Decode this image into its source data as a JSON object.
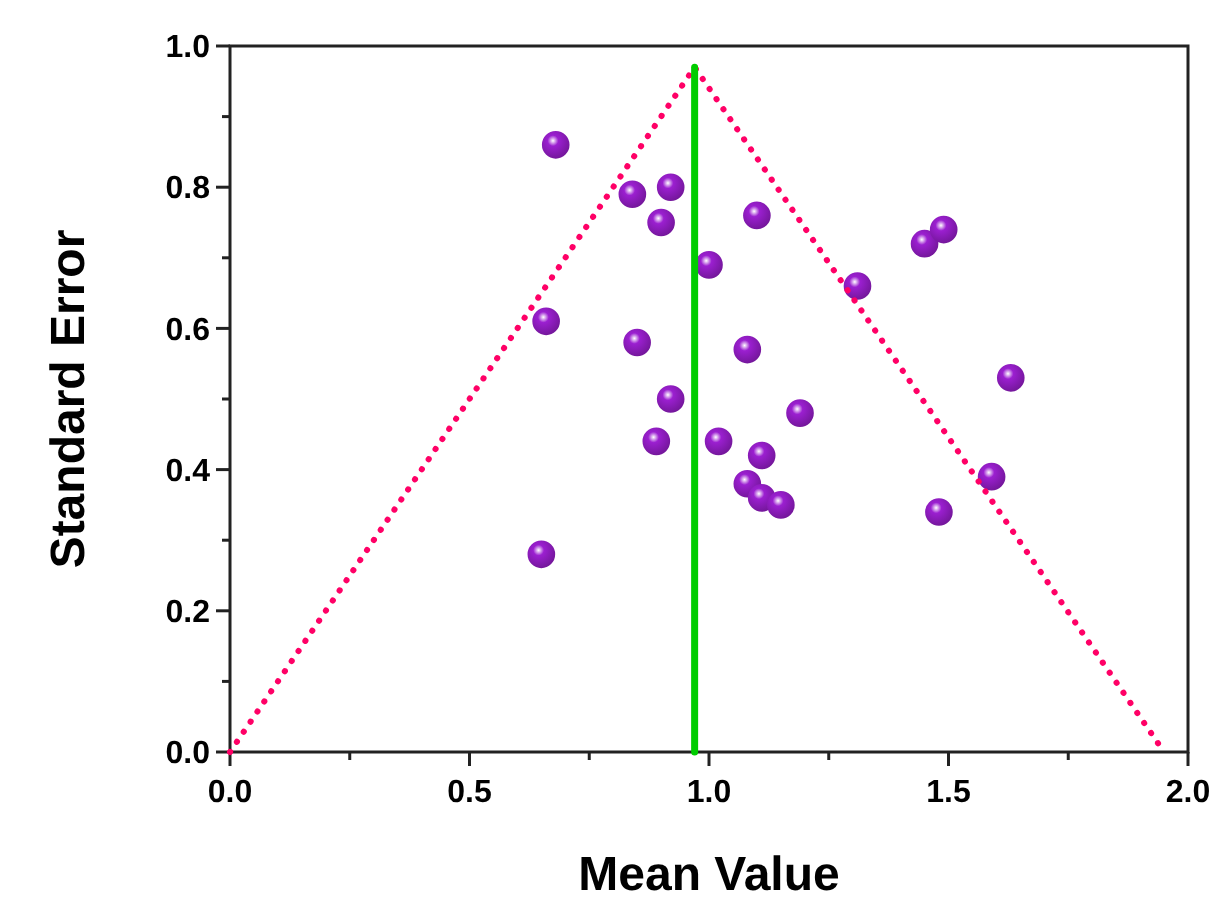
{
  "chart_data": {
    "type": "scatter",
    "xlabel": "Mean Value",
    "ylabel": "Standard Error",
    "xlim": [
      0,
      2.0
    ],
    "ylim": [
      0,
      1.0
    ],
    "xticks": [
      {
        "value": 0,
        "label": "0.0"
      },
      {
        "value": 0.25,
        "label": null
      },
      {
        "value": 0.5,
        "label": "0.5"
      },
      {
        "value": 0.75,
        "label": null
      },
      {
        "value": 1.0,
        "label": "1.0"
      },
      {
        "value": 1.25,
        "label": null
      },
      {
        "value": 1.5,
        "label": "1.5"
      },
      {
        "value": 1.75,
        "label": null
      },
      {
        "value": 2.0,
        "label": "2.0"
      }
    ],
    "yticks": [
      {
        "value": 0,
        "label": "0.0"
      },
      {
        "value": 0.1,
        "label": null
      },
      {
        "value": 0.2,
        "label": "0.2"
      },
      {
        "value": 0.3,
        "label": null
      },
      {
        "value": 0.4,
        "label": "0.4"
      },
      {
        "value": 0.5,
        "label": null
      },
      {
        "value": 0.6,
        "label": "0.6"
      },
      {
        "value": 0.7,
        "label": null
      },
      {
        "value": 0.8,
        "label": "0.8"
      },
      {
        "value": 0.9,
        "label": null
      },
      {
        "value": 1.0,
        "label": "1.0"
      }
    ],
    "grid": false,
    "marker": "circle",
    "series": [
      {
        "color": "#9b1fd0",
        "x": [
          0.68,
          0.84,
          0.92,
          0.9,
          1.0,
          0.66,
          0.85,
          0.92,
          0.89,
          0.65,
          1.1,
          1.08,
          1.31,
          1.45,
          1.49,
          1.63,
          1.19,
          1.02,
          1.11,
          1.08,
          1.11,
          1.15,
          1.59,
          1.48
        ],
        "values": [
          0.86,
          0.79,
          0.8,
          0.75,
          0.69,
          0.61,
          0.58,
          0.5,
          0.44,
          0.28,
          0.76,
          0.57,
          0.66,
          0.72,
          0.74,
          0.53,
          0.48,
          0.44,
          0.42,
          0.38,
          0.36,
          0.35,
          0.39,
          0.34
        ]
      },
      {
        "type": "line",
        "color": "#ff0066",
        "line_style": "dotted",
        "marker": "none",
        "x": [
          0,
          0.97,
          1.95
        ],
        "values": [
          0,
          0.97,
          0
        ]
      },
      {
        "type": "line",
        "color": "#00cc00",
        "line_style": "solid",
        "marker": "none",
        "x": [
          0.97,
          0.97
        ],
        "values": [
          0,
          0.97
        ]
      }
    ]
  }
}
